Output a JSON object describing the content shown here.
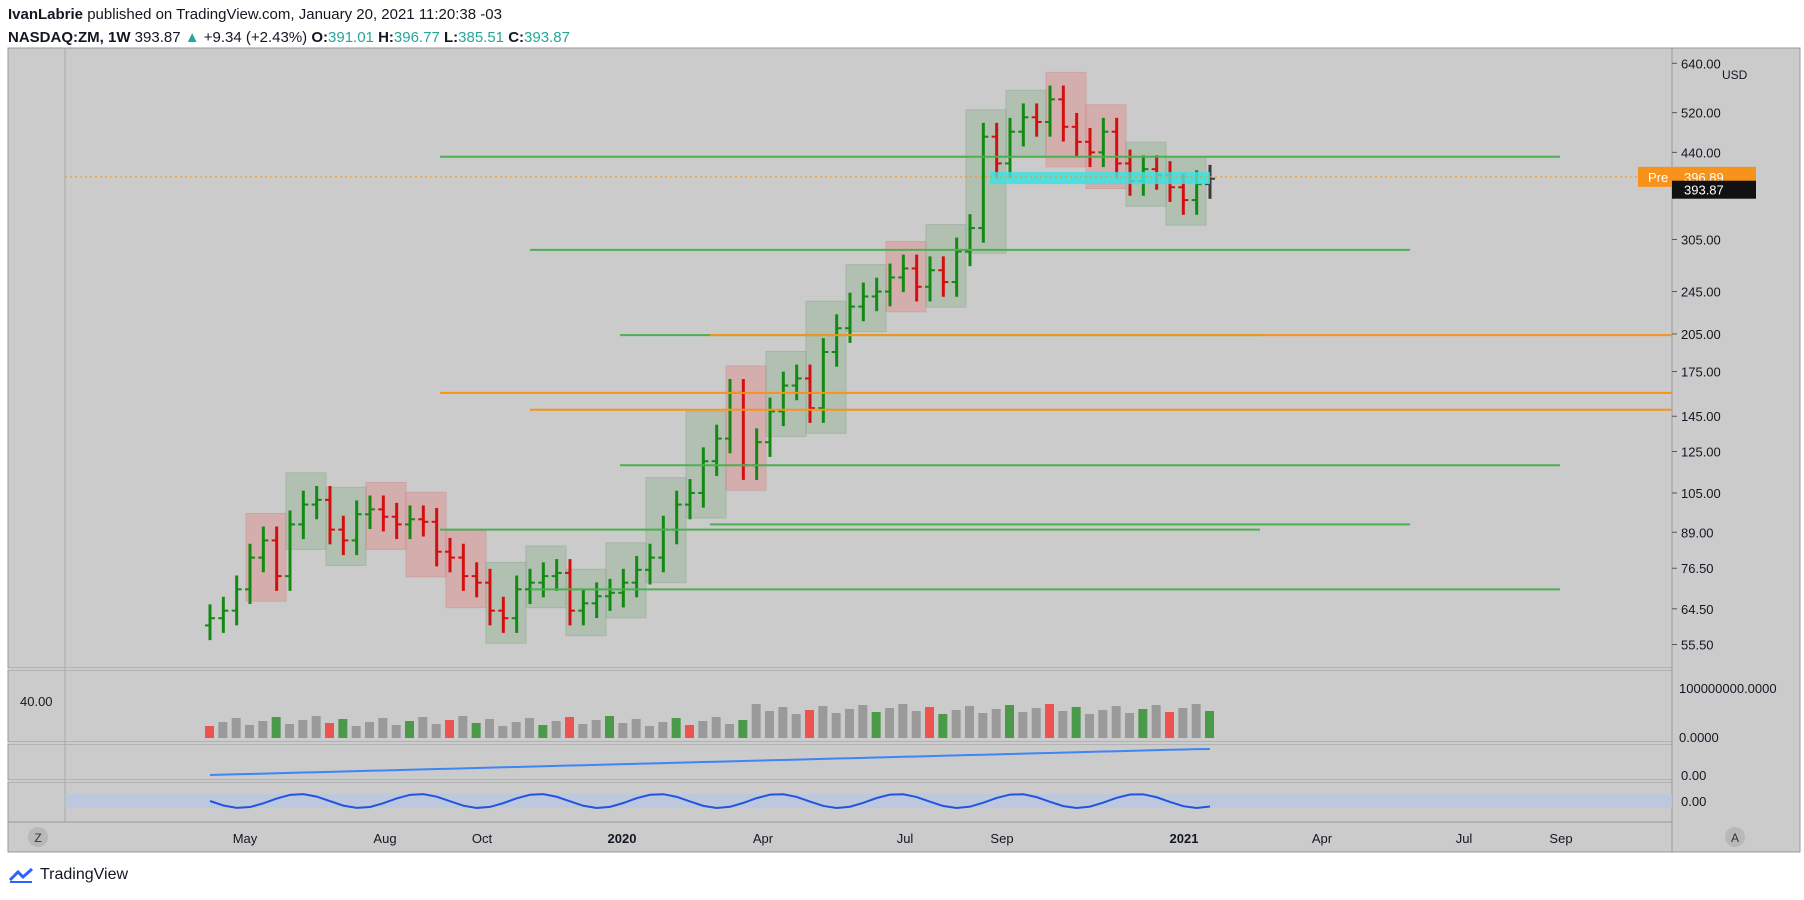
{
  "header": {
    "author": "IvanLabrie",
    "published_text": "published on TradingView.com, January 20, 2021 11:20:38 -03",
    "symbol": "NASDAQ:ZM, 1W",
    "last": "393.87",
    "change": "+9.34 (+2.43%)",
    "open_label": "O:",
    "open": "391.01",
    "high_label": "H:",
    "high": "396.77",
    "low_label": "L:",
    "low": "385.51",
    "close_label": "C:",
    "close": "393.87"
  },
  "footer": {
    "brand": "TradingView"
  },
  "colors": {
    "panel_bg": "#cbcbcb",
    "up": "#138a13",
    "down": "#d50f0f",
    "neutral": "#3b3b3b",
    "green_line": "#4caf50",
    "orange": "#f7931a",
    "cyan": "#3fe0e0",
    "magenta": "#e14ae0",
    "vol_green": "#4a9a4a",
    "vol_red": "#ef5350",
    "vol_gray": "#9a9a9a",
    "blue_line": "#3f86f5"
  },
  "chart_data": {
    "type": "ohlc",
    "symbol": "NASDAQ:ZM",
    "timeframe": "1W",
    "currency": "USD",
    "y_scale": "log",
    "ylim": [
      52,
      660
    ],
    "y_ticks": [
      "640.00",
      "520.00",
      "440.00",
      "305.00",
      "245.00",
      "205.00",
      "175.00",
      "145.00",
      "125.00",
      "105.00",
      "89.00",
      "76.50",
      "64.50",
      "55.50"
    ],
    "x_ticks": [
      "May",
      "Aug",
      "Oct",
      "2020",
      "Apr",
      "Jul",
      "Sep",
      "2021",
      "Apr",
      "Jul",
      "Sep"
    ],
    "price_labels": [
      {
        "text": "Pre",
        "value": "396.89"
      },
      {
        "text": "",
        "value": "393.87"
      }
    ],
    "pre_market": 396.89,
    "bars_weekly_close": [
      62,
      64,
      70,
      80,
      86,
      74,
      92,
      100,
      102,
      90,
      86,
      96,
      98,
      95,
      92,
      94,
      93,
      82,
      80,
      74,
      72,
      64,
      62,
      70,
      72,
      74,
      75,
      64,
      66,
      68,
      69,
      72,
      76,
      80,
      90,
      100,
      105,
      120,
      132,
      160,
      118,
      130,
      148,
      165,
      170,
      150,
      190,
      210,
      230,
      240,
      245,
      260,
      270,
      250,
      268,
      255,
      290,
      320,
      470,
      420,
      480,
      510,
      500,
      550,
      490,
      460,
      440,
      480,
      420,
      390,
      410,
      400,
      380,
      360,
      385,
      393.87
    ],
    "horizontal_levels": [
      {
        "value": 432,
        "color": "green"
      },
      {
        "value": 292,
        "color": "green"
      },
      {
        "value": 204,
        "color": "green"
      },
      {
        "value": 204,
        "color": "orange"
      },
      {
        "value": 160,
        "color": "orange"
      },
      {
        "value": 149,
        "color": "orange"
      },
      {
        "value": 118,
        "color": "green"
      },
      {
        "value": 92,
        "color": "green"
      },
      {
        "value": 90,
        "color": "green"
      },
      {
        "value": 70,
        "color": "green"
      }
    ],
    "volume_panel": {
      "left_label": "40.00",
      "y_ticks": [
        "100000000.0000",
        "0.0000"
      ]
    },
    "indicator_panel_1": {
      "y_ticks": [
        "0.00"
      ]
    },
    "indicator_panel_2": {
      "y_ticks": [
        "0.00"
      ]
    },
    "buttons": {
      "left": "Z",
      "right": "A"
    }
  }
}
